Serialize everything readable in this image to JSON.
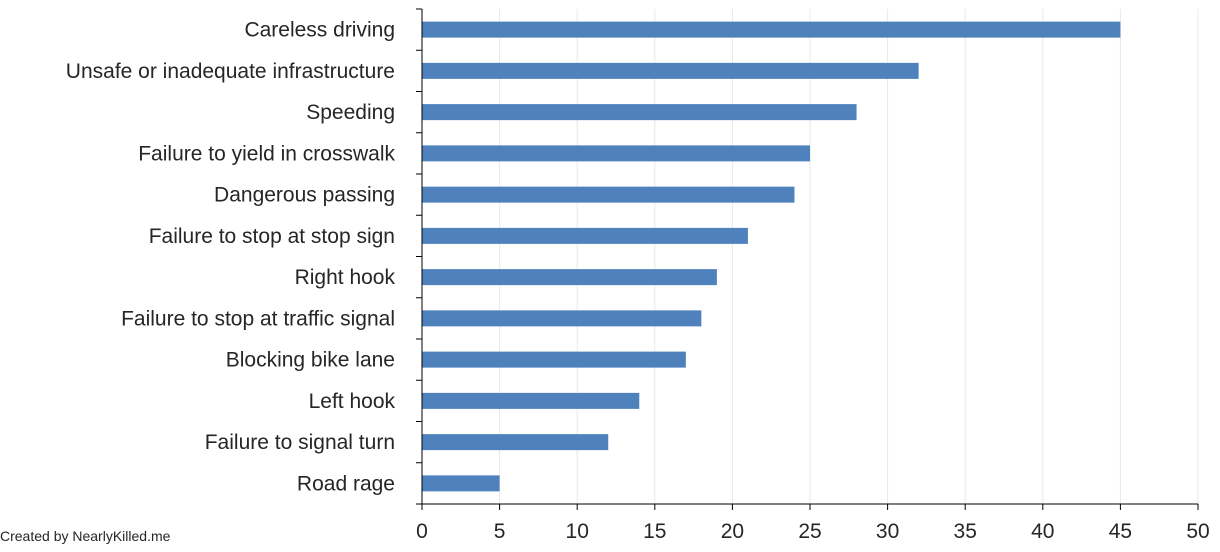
{
  "footer": {
    "credit": "Created by NearlyKilled.me"
  },
  "chart_data": {
    "type": "bar",
    "orientation": "horizontal",
    "categories": [
      "Careless driving",
      "Unsafe or inadequate infrastructure",
      "Speeding",
      "Failure to yield in crosswalk",
      "Dangerous passing",
      "Failure to stop at stop sign",
      "Right hook",
      "Failure to stop at traffic signal",
      "Blocking bike lane",
      "Left hook",
      "Failure to signal turn",
      "Road rage"
    ],
    "values": [
      45,
      32,
      28,
      25,
      24,
      21,
      19,
      18,
      17,
      14,
      12,
      5
    ],
    "xlim": [
      0,
      50
    ],
    "xticks": [
      0,
      5,
      10,
      15,
      20,
      25,
      30,
      35,
      40,
      45,
      50
    ],
    "title": "",
    "xlabel": "",
    "ylabel": "",
    "grid": "vertical",
    "legend": "none",
    "bar_color": "#4F81BD",
    "grid_color": "#E8E8E8",
    "axis_color": "#000000"
  }
}
